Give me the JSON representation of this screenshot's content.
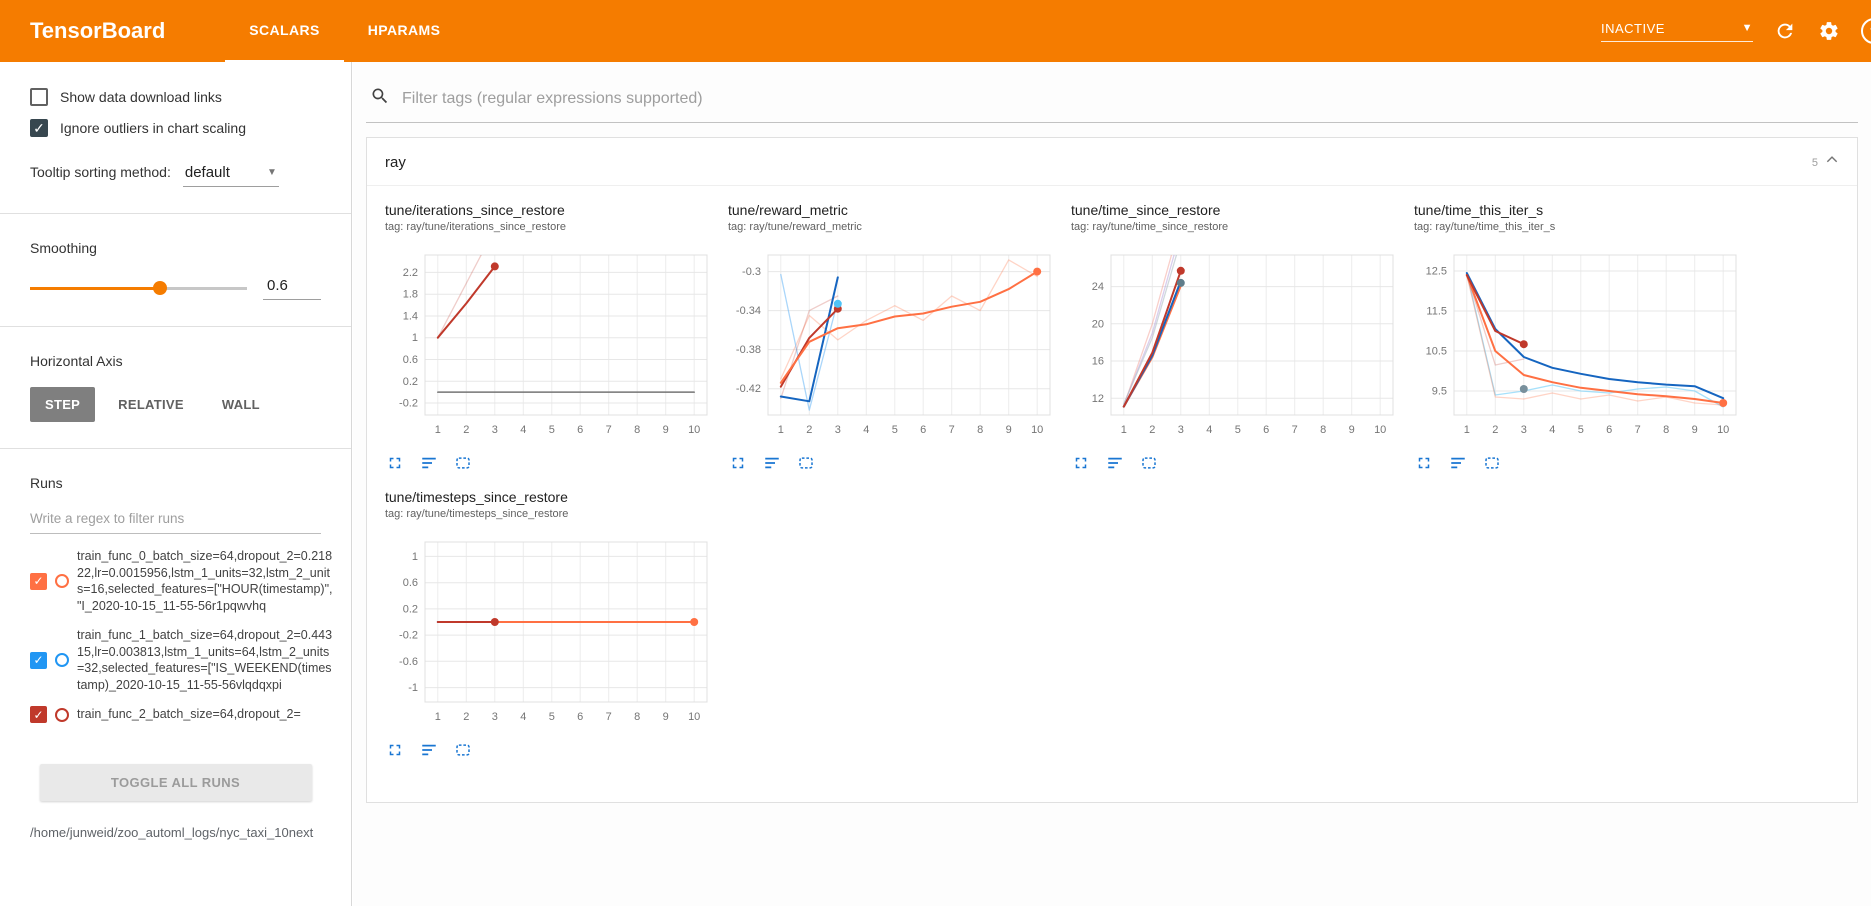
{
  "header": {
    "title": "TensorBoard",
    "tabs": [
      {
        "label": "SCALARS",
        "active": true
      },
      {
        "label": "HPARAMS",
        "active": false
      }
    ],
    "status_dropdown": "INACTIVE",
    "accent_color": "#f57c00"
  },
  "sidebar": {
    "checkboxes": [
      {
        "label": "Show data download links",
        "checked": false
      },
      {
        "label": "Ignore outliers in chart scaling",
        "checked": true
      }
    ],
    "tooltip_sorting": {
      "label": "Tooltip sorting method:",
      "value": "default"
    },
    "smoothing": {
      "label": "Smoothing",
      "value": "0.6"
    },
    "horizontal_axis": {
      "label": "Horizontal Axis",
      "options": [
        "STEP",
        "RELATIVE",
        "WALL"
      ],
      "selected": "STEP"
    },
    "runs": {
      "label": "Runs",
      "filter_placeholder": "Write a regex to filter runs",
      "items": [
        {
          "name": "train_func_0_batch_size=64,dropout_2=0.21822,lr=0.0015956,lstm_1_units=32,lstm_2_units=16,selected_features=[\"HOUR(timestamp)\", \"I_2020-10-15_11-55-56r1pqwvhq",
          "color": "#ff7043",
          "checked": true
        },
        {
          "name": "train_func_1_batch_size=64,dropout_2=0.44315,lr=0.003813,lstm_1_units=64,lstm_2_units=32,selected_features=[\"IS_WEEKEND(timestamp)_2020-10-15_11-55-56vlqdqxpi",
          "color": "#2196f3",
          "checked": true
        },
        {
          "name": "train_func_2_batch_size=64,dropout_2=",
          "color": "#c0392b",
          "checked": true
        }
      ],
      "toggle_all_label": "TOGGLE ALL RUNS",
      "log_path": "/home/junweid/zoo_automl_logs/nyc_taxi_10next"
    }
  },
  "main": {
    "filter_placeholder": "Filter tags (regular expressions supported)",
    "section": {
      "name": "ray",
      "count": "5"
    }
  },
  "chart_data": [
    {
      "type": "line",
      "title": "tune/iterations_since_restore",
      "tag": "tag: ray/tune/iterations_since_restore",
      "xlabel": "",
      "ylabel": "",
      "x_ticks": [
        1,
        2,
        3,
        4,
        5,
        6,
        7,
        8,
        9,
        10
      ],
      "y_ticks": [
        -0.2,
        0.2,
        0.6,
        1,
        1.4,
        1.8,
        2.2
      ],
      "x_range": [
        0.55,
        10.45
      ],
      "y_range": [
        -0.42,
        2.52
      ],
      "series": [
        {
          "name": "train_func_2 raw",
          "color": "#c0392b",
          "opacity": 0.25,
          "width": 1.3,
          "points": [
            [
              1,
              1
            ],
            [
              2,
              2
            ],
            [
              3,
              3
            ]
          ]
        },
        {
          "name": "train_func_2 smoothed",
          "color": "#c0392b",
          "width": 2,
          "points": [
            [
              1,
              1
            ],
            [
              2,
              1.63
            ],
            [
              3,
              2.31
            ]
          ],
          "end_marker": true
        },
        {
          "name": "zero-run",
          "color": "#757575",
          "width": 1.5,
          "points": [
            [
              1,
              0
            ],
            [
              10,
              0
            ]
          ]
        }
      ]
    },
    {
      "type": "line",
      "title": "tune/reward_metric",
      "tag": "tag: ray/tune/reward_metric",
      "xlabel": "",
      "ylabel": "",
      "x_ticks": [
        1,
        2,
        3,
        4,
        5,
        6,
        7,
        8,
        9,
        10
      ],
      "y_ticks": [
        -0.42,
        -0.38,
        -0.34,
        -0.3
      ],
      "x_range": [
        0.55,
        10.45
      ],
      "y_range": [
        -0.447,
        -0.283
      ],
      "series": [
        {
          "name": "train_func_0 raw",
          "color": "#ff7043",
          "opacity": 0.3,
          "width": 1.3,
          "points": [
            [
              1,
              -0.41
            ],
            [
              2,
              -0.345
            ],
            [
              3,
              -0.37
            ],
            [
              4,
              -0.35
            ],
            [
              5,
              -0.335
            ],
            [
              6,
              -0.35
            ],
            [
              7,
              -0.325
            ],
            [
              8,
              -0.34
            ],
            [
              9,
              -0.288
            ],
            [
              10,
              -0.305
            ]
          ]
        },
        {
          "name": "train_func_1 raw",
          "color": "#64b5f6",
          "opacity": 0.55,
          "width": 1.3,
          "points": [
            [
              1,
              -0.303
            ],
            [
              2,
              -0.442
            ],
            [
              3,
              -0.33
            ]
          ]
        },
        {
          "name": "train_func_2 raw",
          "color": "#c0392b",
          "opacity": 0.25,
          "width": 1.3,
          "points": [
            [
              1,
              -0.43
            ],
            [
              2,
              -0.34
            ],
            [
              3,
              -0.325
            ]
          ]
        },
        {
          "name": "train_func_1 smoothed",
          "color": "#1565c0",
          "width": 2,
          "points": [
            [
              1,
              -0.428
            ],
            [
              2,
              -0.433
            ],
            [
              3,
              -0.306
            ]
          ]
        },
        {
          "name": "train_func_2 smoothed",
          "color": "#c0392b",
          "width": 2,
          "points": [
            [
              1,
              -0.418
            ],
            [
              2,
              -0.368
            ],
            [
              3,
              -0.338
            ]
          ],
          "end_marker": true
        },
        {
          "name": "train_func_0 smoothed",
          "color": "#ff7043",
          "width": 2,
          "points": [
            [
              1,
              -0.414
            ],
            [
              2,
              -0.372
            ],
            [
              3,
              -0.358
            ],
            [
              4,
              -0.354
            ],
            [
              5,
              -0.346
            ],
            [
              6,
              -0.343
            ],
            [
              7,
              -0.336
            ],
            [
              8,
              -0.331
            ],
            [
              9,
              -0.318
            ],
            [
              10,
              -0.3
            ]
          ],
          "end_marker": true
        },
        {
          "name": "train_func_1 cursor",
          "color": "#4fc3f7",
          "points": [
            [
              3,
              -0.333
            ]
          ],
          "end_marker": true
        }
      ]
    },
    {
      "type": "line",
      "title": "tune/time_since_restore",
      "tag": "tag: ray/tune/time_since_restore",
      "xlabel": "",
      "ylabel": "",
      "x_ticks": [
        1,
        2,
        3,
        4,
        5,
        6,
        7,
        8,
        9,
        10
      ],
      "y_ticks": [
        12,
        16,
        20,
        24
      ],
      "x_range": [
        0.55,
        10.45
      ],
      "y_range": [
        10.2,
        27.4
      ],
      "series": [
        {
          "name": "raw a",
          "color": "#f1948a",
          "opacity": 0.45,
          "width": 1.3,
          "points": [
            [
              1,
              11.2
            ],
            [
              2,
              20
            ],
            [
              3,
              31
            ]
          ]
        },
        {
          "name": "raw b",
          "color": "#b39ddb",
          "opacity": 0.5,
          "width": 1.3,
          "points": [
            [
              1,
              11.3
            ],
            [
              2,
              19
            ],
            [
              3,
              30
            ]
          ]
        },
        {
          "name": "raw c",
          "color": "#b0bec5",
          "opacity": 0.6,
          "width": 1.3,
          "points": [
            [
              1,
              11.4
            ],
            [
              2,
              18.5
            ],
            [
              3,
              29
            ]
          ]
        },
        {
          "name": "train_func_0 smoothed",
          "color": "#ff7043",
          "width": 2,
          "points": [
            [
              1,
              11.1
            ],
            [
              2,
              16.4
            ],
            [
              3,
              24.1
            ]
          ]
        },
        {
          "name": "train_func_1 smoothed",
          "color": "#1565c0",
          "width": 2,
          "points": [
            [
              1,
              11.1
            ],
            [
              2,
              16.6
            ],
            [
              3,
              24.6
            ]
          ]
        },
        {
          "name": "train_func_2 smoothed",
          "color": "#c0392b",
          "width": 2,
          "points": [
            [
              1,
              11.1
            ],
            [
              2,
              16.9
            ],
            [
              3,
              25.7
            ]
          ],
          "end_marker": true
        },
        {
          "name": "train_func_1 cursor",
          "color": "#607d8b",
          "points": [
            [
              3,
              24.4
            ]
          ],
          "end_marker": true
        }
      ]
    },
    {
      "type": "line",
      "title": "tune/time_this_iter_s",
      "tag": "tag: ray/tune/time_this_iter_s",
      "xlabel": "",
      "ylabel": "",
      "x_ticks": [
        1,
        2,
        3,
        4,
        5,
        6,
        7,
        8,
        9,
        10
      ],
      "y_ticks": [
        9.5,
        10.5,
        11.5,
        12.5
      ],
      "x_range": [
        0.55,
        10.45
      ],
      "y_range": [
        8.9,
        12.9
      ],
      "series": [
        {
          "name": "train_func_1 raw",
          "color": "#81d4fa",
          "opacity": 0.7,
          "width": 1.3,
          "points": [
            [
              1,
              12.45
            ],
            [
              2,
              9.4
            ],
            [
              3,
              9.5
            ],
            [
              4,
              9.65
            ],
            [
              5,
              9.5
            ],
            [
              6,
              9.45
            ],
            [
              7,
              9.55
            ],
            [
              8,
              9.6
            ],
            [
              9,
              9.5
            ],
            [
              10,
              9.1
            ]
          ]
        },
        {
          "name": "train_func_0 raw",
          "color": "#ff7043",
          "opacity": 0.3,
          "width": 1.3,
          "points": [
            [
              1,
              12.4
            ],
            [
              2,
              9.35
            ],
            [
              3,
              9.3
            ],
            [
              4,
              9.45
            ],
            [
              5,
              9.3
            ],
            [
              6,
              9.4
            ],
            [
              7,
              9.25
            ],
            [
              8,
              9.35
            ],
            [
              9,
              9.2
            ],
            [
              10,
              9.15
            ]
          ]
        },
        {
          "name": "train_func_2 raw",
          "color": "#c0392b",
          "opacity": 0.25,
          "width": 1.3,
          "points": [
            [
              1,
              12.4
            ],
            [
              2,
              10.15
            ],
            [
              3,
              10.3
            ]
          ]
        },
        {
          "name": "train_func_0 smoothed",
          "color": "#ff7043",
          "width": 2,
          "points": [
            [
              1,
              12.4
            ],
            [
              2,
              10.5
            ],
            [
              3,
              9.9
            ],
            [
              4,
              9.72
            ],
            [
              5,
              9.58
            ],
            [
              6,
              9.5
            ],
            [
              7,
              9.42
            ],
            [
              8,
              9.37
            ],
            [
              9,
              9.3
            ],
            [
              10,
              9.2
            ]
          ],
          "end_marker": true
        },
        {
          "name": "train_func_1 smoothed",
          "color": "#1565c0",
          "width": 2,
          "points": [
            [
              1,
              12.45
            ],
            [
              2,
              11.05
            ],
            [
              3,
              10.35
            ],
            [
              4,
              10.08
            ],
            [
              5,
              9.93
            ],
            [
              6,
              9.8
            ],
            [
              7,
              9.72
            ],
            [
              8,
              9.66
            ],
            [
              9,
              9.62
            ],
            [
              10,
              9.32
            ]
          ]
        },
        {
          "name": "train_func_2 smoothed",
          "color": "#c0392b",
          "width": 2,
          "points": [
            [
              1,
              12.4
            ],
            [
              2,
              11.0
            ],
            [
              3,
              10.67
            ]
          ],
          "end_marker": true
        },
        {
          "name": "train_func_1 cursor",
          "color": "#78909c",
          "points": [
            [
              3,
              9.55
            ]
          ],
          "end_marker": true
        }
      ]
    },
    {
      "type": "line",
      "title": "tune/timesteps_since_restore",
      "tag": "tag: ray/tune/timesteps_since_restore",
      "xlabel": "",
      "ylabel": "",
      "x_ticks": [
        1,
        2,
        3,
        4,
        5,
        6,
        7,
        8,
        9,
        10
      ],
      "y_ticks": [
        -1,
        -0.6,
        -0.2,
        0.2,
        0.6,
        1
      ],
      "x_range": [
        0.55,
        10.45
      ],
      "y_range": [
        -1.22,
        1.22
      ],
      "series": [
        {
          "name": "train_func_0 smoothed",
          "color": "#ff7043",
          "width": 2,
          "points": [
            [
              1,
              0
            ],
            [
              10,
              0
            ]
          ],
          "end_marker": true
        },
        {
          "name": "train_func_1 smoothed",
          "color": "#1565c0",
          "width": 2,
          "points": [
            [
              1,
              0
            ],
            [
              3,
              0
            ]
          ]
        },
        {
          "name": "train_func_2 smoothed",
          "color": "#c0392b",
          "width": 2,
          "points": [
            [
              1,
              0
            ],
            [
              3,
              0
            ]
          ],
          "end_marker": true
        }
      ]
    }
  ]
}
